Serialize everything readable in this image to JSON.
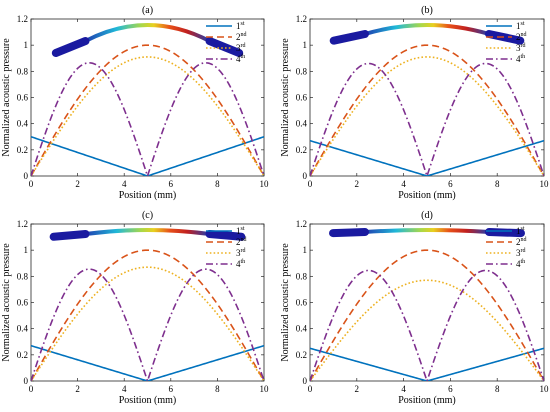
{
  "figure": {
    "background": "#ffffff",
    "series_colors": [
      "#0072BD",
      "#D95319",
      "#EDB120",
      "#7E2F8E"
    ],
    "series_styles": [
      "solid",
      "dashed",
      "dotted",
      "dashdot"
    ],
    "legend_placement": "top-right",
    "legend_labels": [
      {
        "base": "1",
        "sup": "st"
      },
      {
        "base": "2",
        "sup": "nd"
      },
      {
        "base": "3",
        "sup": "rd"
      },
      {
        "base": "4",
        "sup": "th"
      }
    ]
  },
  "chart_data": [
    {
      "type": "line",
      "title": "(a)",
      "xlabel": "Position (mm)",
      "ylabel": "Normalized acoustic pressure",
      "xlim": [
        0,
        10
      ],
      "ylim": [
        0,
        1.2
      ],
      "xticks": [
        0,
        2,
        4,
        6,
        8,
        10
      ],
      "yticks": [
        0,
        0.2,
        0.4,
        0.6,
        0.8,
        1,
        1.2
      ],
      "ytick_labels": [
        "0",
        "0.2",
        "0.4",
        "0.6",
        "0.8",
        "1",
        "1.2"
      ],
      "grid": false,
      "legend": "top-right",
      "inset": "curved transducer bar, strongly bent",
      "series": [
        {
          "name": "1st",
          "params": {
            "kind": "v",
            "edge": 0.3
          }
        },
        {
          "name": "2nd",
          "params": {
            "kind": "arch",
            "peak": 1.0
          }
        },
        {
          "name": "3rd",
          "params": {
            "kind": "arch",
            "peak": 0.91
          }
        },
        {
          "name": "4th",
          "params": {
            "kind": "double",
            "peak": 0.865
          }
        }
      ]
    },
    {
      "type": "line",
      "title": "(b)",
      "xlabel": "Position (mm)",
      "ylabel": "Normalized acoustic pressure",
      "xlim": [
        0,
        10
      ],
      "ylim": [
        0,
        1.2
      ],
      "xticks": [
        0,
        2,
        4,
        6,
        8,
        10
      ],
      "yticks": [
        0,
        0.2,
        0.4,
        0.6,
        0.8,
        1,
        1.2
      ],
      "ytick_labels": [
        "0",
        "0.2",
        "0.4",
        "0.6",
        "0.8",
        "1",
        "1.2"
      ],
      "grid": false,
      "legend": "top-right",
      "inset": "curved transducer bar, moderately bent",
      "series": [
        {
          "name": "1st",
          "params": {
            "kind": "v",
            "edge": 0.27
          }
        },
        {
          "name": "2nd",
          "params": {
            "kind": "arch",
            "peak": 1.0
          }
        },
        {
          "name": "3rd",
          "params": {
            "kind": "arch",
            "peak": 0.91
          }
        },
        {
          "name": "4th",
          "params": {
            "kind": "double",
            "peak": 0.86
          }
        }
      ]
    },
    {
      "type": "line",
      "title": "(c)",
      "xlabel": "Position (mm)",
      "ylabel": "Normalized acoustic pressure",
      "xlim": [
        0,
        10
      ],
      "ylim": [
        0,
        1.2
      ],
      "xticks": [
        0,
        2,
        4,
        6,
        8,
        10
      ],
      "yticks": [
        0,
        0.2,
        0.4,
        0.6,
        0.8,
        1,
        1.2
      ],
      "ytick_labels": [
        "0",
        "0.2",
        "0.4",
        "0.6",
        "0.8",
        "1",
        "1.2"
      ],
      "grid": false,
      "legend": "top-right",
      "inset": "curved transducer bar, slightly bent",
      "series": [
        {
          "name": "1st",
          "params": {
            "kind": "v",
            "edge": 0.27
          }
        },
        {
          "name": "2nd",
          "params": {
            "kind": "arch",
            "peak": 1.0
          }
        },
        {
          "name": "3rd",
          "params": {
            "kind": "arch",
            "peak": 0.87
          }
        },
        {
          "name": "4th",
          "params": {
            "kind": "double",
            "peak": 0.855
          }
        }
      ]
    },
    {
      "type": "line",
      "title": "(d)",
      "xlabel": "Position (mm)",
      "ylabel": "Normalized acoustic pressure",
      "xlim": [
        0,
        10
      ],
      "ylim": [
        0,
        1.2
      ],
      "xticks": [
        0,
        2,
        4,
        6,
        8,
        10
      ],
      "yticks": [
        0,
        0.2,
        0.4,
        0.6,
        0.8,
        1,
        1.2
      ],
      "ytick_labels": [
        "0",
        "0.2",
        "0.4",
        "0.6",
        "0.8",
        "1",
        "1.2"
      ],
      "grid": false,
      "legend": "top-right",
      "inset": "transducer bar, nearly flat",
      "series": [
        {
          "name": "1st",
          "params": {
            "kind": "v",
            "edge": 0.25
          }
        },
        {
          "name": "2nd",
          "params": {
            "kind": "arch",
            "peak": 1.0
          }
        },
        {
          "name": "3rd",
          "params": {
            "kind": "arch",
            "peak": 0.77
          }
        },
        {
          "name": "4th",
          "params": {
            "kind": "double",
            "peak": 0.845
          }
        }
      ]
    }
  ]
}
